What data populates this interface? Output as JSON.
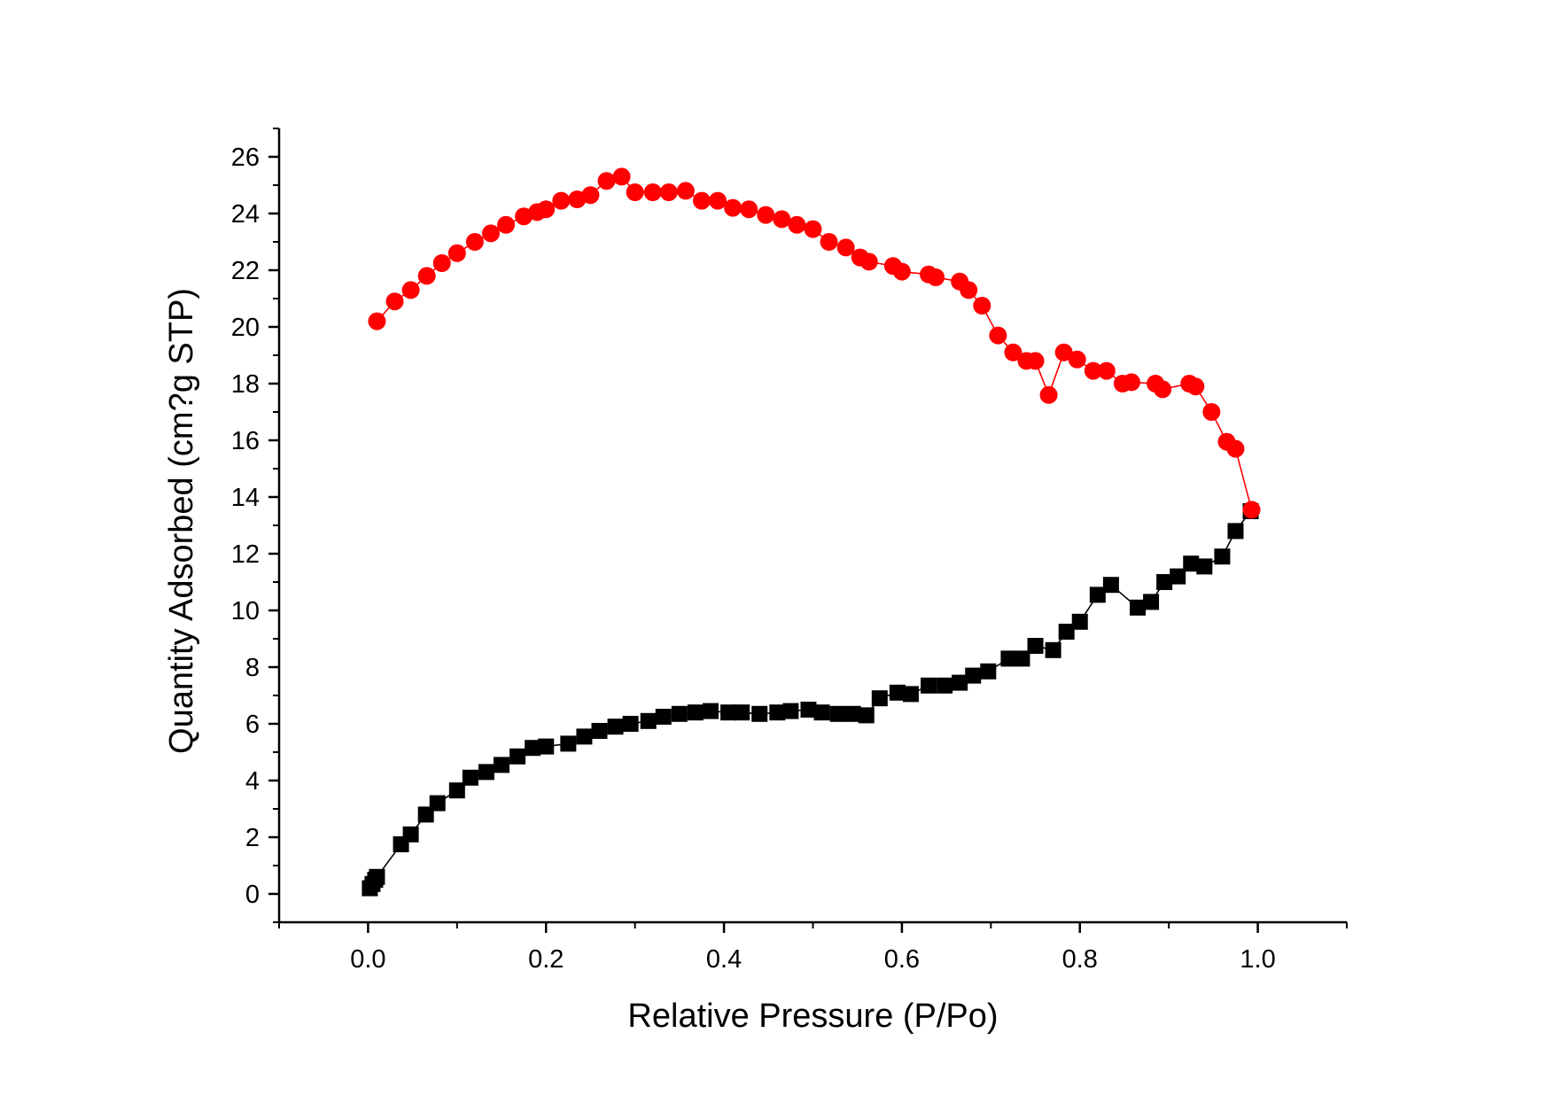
{
  "chart_data": {
    "type": "scatter",
    "title": "",
    "xlabel": "Relative Pressure (P/Po)",
    "ylabel": "Quantity Adsorbed (cm?g STP)",
    "xlim": [
      -0.1,
      1.1
    ],
    "ylim": [
      -1,
      27
    ],
    "x_ticks": [
      0.0,
      0.2,
      0.4,
      0.6,
      0.8,
      1.0
    ],
    "x_tick_labels": [
      "0.0",
      "0.2",
      "0.4",
      "0.6",
      "0.8",
      "1.0"
    ],
    "y_ticks": [
      0,
      2,
      4,
      6,
      8,
      10,
      12,
      14,
      16,
      18,
      20,
      22,
      24,
      26
    ],
    "y_tick_labels": [
      "0",
      "2",
      "4",
      "6",
      "8",
      "10",
      "12",
      "14",
      "16",
      "18",
      "20",
      "22",
      "24",
      "26"
    ],
    "grid": false,
    "legend": "none",
    "series": [
      {
        "marker": "square",
        "color": "#000000",
        "points": [
          [
            0.002,
            0.2
          ],
          [
            0.005,
            0.35
          ],
          [
            0.008,
            0.5
          ],
          [
            0.01,
            0.6
          ],
          [
            0.037,
            1.75
          ],
          [
            0.048,
            2.1
          ],
          [
            0.065,
            2.8
          ],
          [
            0.078,
            3.2
          ],
          [
            0.1,
            3.65
          ],
          [
            0.115,
            4.1
          ],
          [
            0.133,
            4.3
          ],
          [
            0.15,
            4.55
          ],
          [
            0.168,
            4.85
          ],
          [
            0.185,
            5.15
          ],
          [
            0.2,
            5.2
          ],
          [
            0.225,
            5.3
          ],
          [
            0.243,
            5.55
          ],
          [
            0.26,
            5.75
          ],
          [
            0.278,
            5.9
          ],
          [
            0.295,
            6.0
          ],
          [
            0.315,
            6.1
          ],
          [
            0.332,
            6.25
          ],
          [
            0.35,
            6.35
          ],
          [
            0.368,
            6.4
          ],
          [
            0.385,
            6.45
          ],
          [
            0.405,
            6.4
          ],
          [
            0.42,
            6.4
          ],
          [
            0.44,
            6.35
          ],
          [
            0.46,
            6.4
          ],
          [
            0.475,
            6.45
          ],
          [
            0.495,
            6.5
          ],
          [
            0.51,
            6.4
          ],
          [
            0.528,
            6.35
          ],
          [
            0.545,
            6.35
          ],
          [
            0.56,
            6.3
          ],
          [
            0.575,
            6.9
          ],
          [
            0.595,
            7.1
          ],
          [
            0.61,
            7.05
          ],
          [
            0.63,
            7.35
          ],
          [
            0.648,
            7.35
          ],
          [
            0.665,
            7.45
          ],
          [
            0.68,
            7.7
          ],
          [
            0.697,
            7.85
          ],
          [
            0.72,
            8.3
          ],
          [
            0.735,
            8.3
          ],
          [
            0.75,
            8.75
          ],
          [
            0.77,
            8.6
          ],
          [
            0.785,
            9.25
          ],
          [
            0.8,
            9.6
          ],
          [
            0.82,
            10.55
          ],
          [
            0.835,
            10.9
          ],
          [
            0.865,
            10.1
          ],
          [
            0.88,
            10.3
          ],
          [
            0.895,
            11.0
          ],
          [
            0.91,
            11.2
          ],
          [
            0.925,
            11.65
          ],
          [
            0.94,
            11.55
          ],
          [
            0.96,
            11.9
          ],
          [
            0.975,
            12.8
          ],
          [
            0.992,
            13.5
          ]
        ]
      },
      {
        "marker": "circle",
        "color": "#ff0000",
        "points": [
          [
            0.01,
            20.2
          ],
          [
            0.03,
            20.9
          ],
          [
            0.048,
            21.3
          ],
          [
            0.066,
            21.8
          ],
          [
            0.083,
            22.25
          ],
          [
            0.1,
            22.6
          ],
          [
            0.12,
            23.0
          ],
          [
            0.138,
            23.3
          ],
          [
            0.155,
            23.6
          ],
          [
            0.175,
            23.9
          ],
          [
            0.19,
            24.05
          ],
          [
            0.2,
            24.15
          ],
          [
            0.217,
            24.45
          ],
          [
            0.235,
            24.5
          ],
          [
            0.25,
            24.65
          ],
          [
            0.268,
            25.15
          ],
          [
            0.285,
            25.3
          ],
          [
            0.3,
            24.75
          ],
          [
            0.32,
            24.75
          ],
          [
            0.338,
            24.75
          ],
          [
            0.357,
            24.8
          ],
          [
            0.375,
            24.45
          ],
          [
            0.393,
            24.45
          ],
          [
            0.41,
            24.2
          ],
          [
            0.428,
            24.15
          ],
          [
            0.447,
            23.95
          ],
          [
            0.465,
            23.8
          ],
          [
            0.482,
            23.6
          ],
          [
            0.5,
            23.45
          ],
          [
            0.518,
            23.0
          ],
          [
            0.537,
            22.8
          ],
          [
            0.553,
            22.45
          ],
          [
            0.563,
            22.3
          ],
          [
            0.59,
            22.15
          ],
          [
            0.6,
            21.95
          ],
          [
            0.63,
            21.85
          ],
          [
            0.638,
            21.75
          ],
          [
            0.665,
            21.6
          ],
          [
            0.675,
            21.3
          ],
          [
            0.69,
            20.75
          ],
          [
            0.708,
            19.7
          ],
          [
            0.725,
            19.1
          ],
          [
            0.74,
            18.8
          ],
          [
            0.75,
            18.8
          ],
          [
            0.765,
            17.6
          ],
          [
            0.782,
            19.1
          ],
          [
            0.797,
            18.85
          ],
          [
            0.815,
            18.45
          ],
          [
            0.83,
            18.45
          ],
          [
            0.848,
            18.0
          ],
          [
            0.858,
            18.05
          ],
          [
            0.885,
            18.0
          ],
          [
            0.893,
            17.8
          ],
          [
            0.923,
            18.0
          ],
          [
            0.93,
            17.9
          ],
          [
            0.948,
            17.0
          ],
          [
            0.965,
            15.95
          ],
          [
            0.975,
            15.7
          ],
          [
            0.993,
            13.55
          ]
        ]
      }
    ]
  }
}
